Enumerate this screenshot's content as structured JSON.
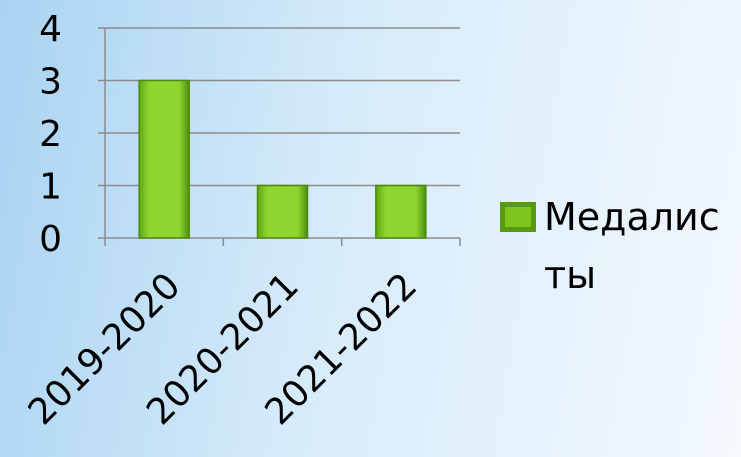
{
  "chart_data": {
    "type": "bar",
    "categories": [
      "2019-2020",
      "2020-2021",
      "2021-2022"
    ],
    "series": [
      {
        "name": "Медалисты",
        "color": "#7cc61c",
        "values": [
          3,
          1,
          1
        ]
      }
    ],
    "ylim": [
      0,
      4
    ],
    "yticks": [
      0,
      1,
      2,
      3,
      4
    ],
    "grid": true,
    "legend": "right"
  }
}
